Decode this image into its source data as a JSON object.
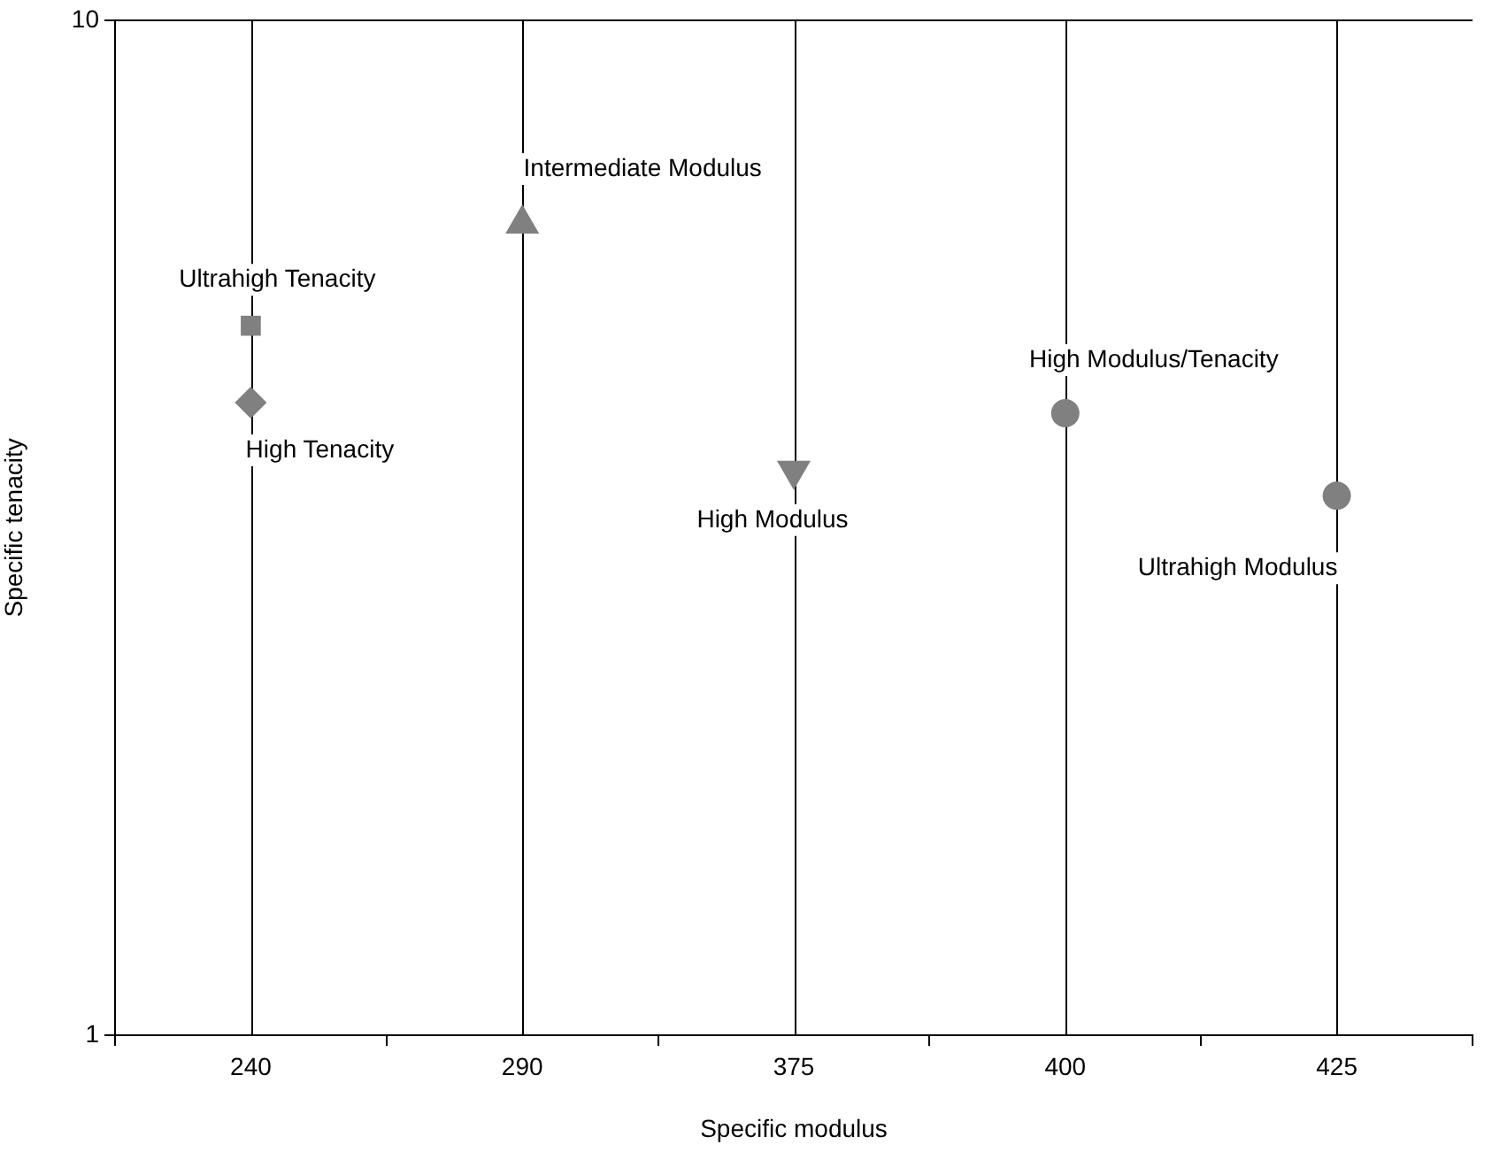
{
  "chart_data": {
    "type": "scatter",
    "xlabel": "Specific modulus",
    "ylabel": "Specific tenacity",
    "categories": [
      "240",
      "290",
      "375",
      "400",
      "425"
    ],
    "series": [
      {
        "name": "Ultrahigh Tenacity",
        "color": "#808080",
        "marker": "square",
        "x": [
          "240"
        ],
        "values": [
          5.0
        ]
      },
      {
        "name": "High Tenacity",
        "color": "#808080",
        "marker": "diamond",
        "x": [
          "240"
        ],
        "values": [
          4.2
        ]
      },
      {
        "name": "Intermediate Modulus",
        "color": "#808080",
        "marker": "triangle",
        "x": [
          "290"
        ],
        "values": [
          6.3
        ]
      },
      {
        "name": "High Modulus",
        "color": "#808080",
        "marker": "triangle-down",
        "x": [
          "375"
        ],
        "values": [
          3.6
        ]
      },
      {
        "name": "High Modulus/Tenacity",
        "color": "#808080",
        "marker": "circle",
        "x": [
          "400"
        ],
        "values": [
          4.1
        ]
      },
      {
        "name": "Ultrahigh Modulus",
        "color": "#808080",
        "x": [
          "425"
        ],
        "values": [
          3.4
        ]
      }
    ],
    "log": true,
    "ylim": [
      1,
      10
    ],
    "yticks": [
      1,
      10
    ],
    "grid": true,
    "legend": false
  }
}
